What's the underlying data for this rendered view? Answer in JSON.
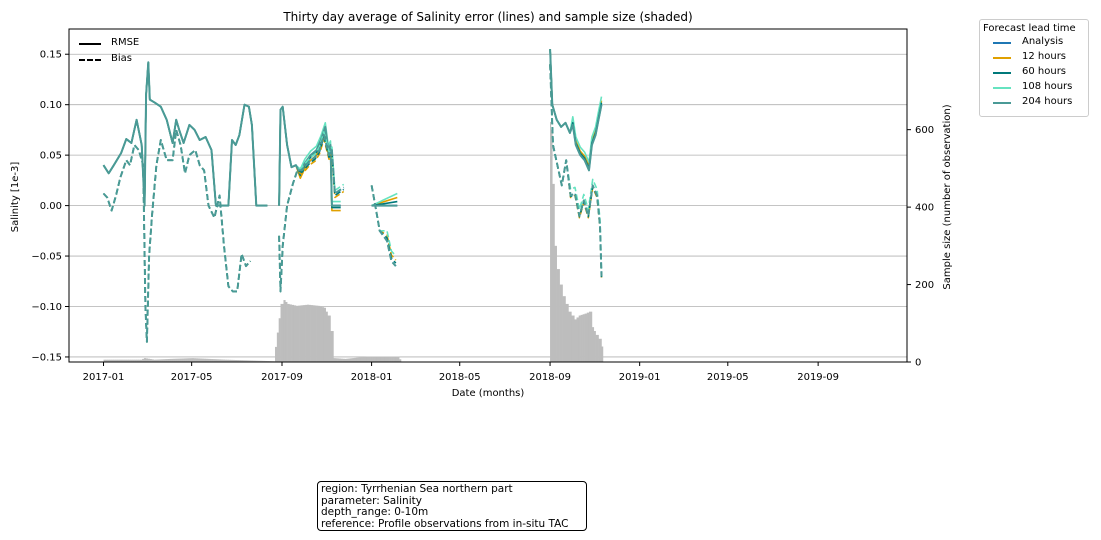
{
  "chart_data": {
    "type": "line",
    "title": "Thirty day average of Salinity error (lines) and sample size (shaded)",
    "xlabel": "Date (months)",
    "ylabel": "Salinity [1e-3]",
    "y2label": "Sample size (number of observation)",
    "ylim": [
      -0.155,
      0.175
    ],
    "y2lim": [
      0,
      860
    ],
    "xlim": [
      "2016-11-15",
      "2019-12-31"
    ],
    "xticks": [
      "2017-01",
      "2017-05",
      "2017-09",
      "2018-01",
      "2018-05",
      "2018-09",
      "2019-01",
      "2019-05",
      "2019-09"
    ],
    "yticks": [
      "0.15",
      "0.10",
      "0.05",
      "0.00",
      "−0.05",
      "−0.10",
      "−0.15"
    ],
    "y2ticks": [
      "0",
      "200",
      "400",
      "600"
    ],
    "grid": "horizontal",
    "legend_placement": "outside-right-top",
    "style_legend": [
      {
        "label": "RMSE",
        "style": "solid"
      },
      {
        "label": "Bias",
        "style": "dashed"
      }
    ],
    "legend_title": "Forecast lead time",
    "series": [
      {
        "name": "Analysis",
        "color": "#1f77b4"
      },
      {
        "name": "12 hours",
        "color": "#e0a000"
      },
      {
        "name": "60 hours",
        "color": "#00797a"
      },
      {
        "name": "108 hours",
        "color": "#66e3c0"
      },
      {
        "name": "204 hours",
        "color": "#4a9a96"
      }
    ],
    "rmse_segments": [
      [
        [
          "2017-01-01",
          0.04
        ],
        [
          "2017-01-08",
          0.032
        ],
        [
          "2017-01-15",
          0.04
        ],
        [
          "2017-01-25",
          0.052
        ],
        [
          "2017-02-01",
          0.066
        ],
        [
          "2017-02-08",
          0.062
        ],
        [
          "2017-02-15",
          0.085
        ],
        [
          "2017-02-22",
          0.06
        ],
        [
          "2017-02-26",
          0.0
        ],
        [
          "2017-02-28",
          0.11
        ],
        [
          "2017-03-03",
          0.142
        ],
        [
          "2017-03-05",
          0.105
        ],
        [
          "2017-03-12",
          0.102
        ],
        [
          "2017-03-20",
          0.098
        ],
        [
          "2017-03-28",
          0.085
        ],
        [
          "2017-04-05",
          0.062
        ],
        [
          "2017-04-10",
          0.085
        ],
        [
          "2017-04-14",
          0.075
        ],
        [
          "2017-04-20",
          0.062
        ],
        [
          "2017-04-28",
          0.08
        ],
        [
          "2017-05-05",
          0.075
        ],
        [
          "2017-05-12",
          0.065
        ],
        [
          "2017-05-20",
          0.068
        ],
        [
          "2017-05-28",
          0.055
        ],
        [
          "2017-06-03",
          0.0
        ],
        [
          "2017-06-20",
          0.0
        ],
        [
          "2017-06-25",
          0.065
        ],
        [
          "2017-06-30",
          0.06
        ],
        [
          "2017-07-05",
          0.07
        ],
        [
          "2017-07-12",
          0.1
        ],
        [
          "2017-07-18",
          0.098
        ],
        [
          "2017-07-22",
          0.08
        ],
        [
          "2017-07-28",
          0.0
        ],
        [
          "2017-08-12",
          0.0
        ]
      ],
      [
        [
          "2017-08-28",
          0.0
        ],
        [
          "2017-08-30",
          0.095
        ],
        [
          "2017-09-02",
          0.098
        ],
        [
          "2017-09-08",
          0.06
        ],
        [
          "2017-09-14",
          0.038
        ],
        [
          "2017-09-20",
          0.04
        ],
        [
          "2017-09-26",
          0.032
        ],
        [
          "2017-10-02",
          0.042
        ],
        [
          "2017-10-10",
          0.05
        ],
        [
          "2017-10-18",
          0.055
        ],
        [
          "2017-10-24",
          0.065
        ],
        [
          "2017-10-30",
          0.078
        ],
        [
          "2017-11-03",
          0.055
        ],
        [
          "2017-11-06",
          0.06
        ],
        [
          "2017-11-08",
          0.0
        ],
        [
          "2017-11-20",
          0.0
        ]
      ],
      [
        [
          "2018-01-01",
          0.0
        ],
        [
          "2018-02-05",
          0.0
        ]
      ],
      [
        [
          "2018-09-01",
          0.155
        ],
        [
          "2018-09-04",
          0.1
        ],
        [
          "2018-09-10",
          0.085
        ],
        [
          "2018-09-16",
          0.078
        ],
        [
          "2018-09-22",
          0.082
        ],
        [
          "2018-09-28",
          0.072
        ],
        [
          "2018-10-02",
          0.08
        ],
        [
          "2018-10-06",
          0.06
        ],
        [
          "2018-10-12",
          0.05
        ],
        [
          "2018-10-18",
          0.045
        ],
        [
          "2018-10-24",
          0.035
        ],
        [
          "2018-10-28",
          0.06
        ],
        [
          "2018-11-02",
          0.07
        ],
        [
          "2018-11-06",
          0.085
        ],
        [
          "2018-11-10",
          0.1
        ]
      ]
    ],
    "bias_segments": [
      [
        [
          "2017-01-01",
          0.012
        ],
        [
          "2017-01-06",
          0.008
        ],
        [
          "2017-01-12",
          -0.005
        ],
        [
          "2017-01-18",
          0.01
        ],
        [
          "2017-01-24",
          0.028
        ],
        [
          "2017-02-01",
          0.045
        ],
        [
          "2017-02-06",
          0.04
        ],
        [
          "2017-02-12",
          0.06
        ],
        [
          "2017-02-18",
          0.055
        ],
        [
          "2017-02-24",
          0.04
        ],
        [
          "2017-02-27",
          -0.1
        ],
        [
          "2017-03-01",
          -0.135
        ],
        [
          "2017-03-04",
          -0.05
        ],
        [
          "2017-03-08",
          -0.01
        ],
        [
          "2017-03-14",
          0.04
        ],
        [
          "2017-03-20",
          0.065
        ],
        [
          "2017-03-28",
          0.045
        ],
        [
          "2017-04-05",
          0.045
        ],
        [
          "2017-04-10",
          0.075
        ],
        [
          "2017-04-16",
          0.06
        ],
        [
          "2017-04-22",
          0.032
        ],
        [
          "2017-04-28",
          0.05
        ],
        [
          "2017-05-06",
          0.055
        ],
        [
          "2017-05-12",
          0.04
        ],
        [
          "2017-05-18",
          0.035
        ],
        [
          "2017-05-24",
          0.0
        ],
        [
          "2017-06-01",
          -0.012
        ],
        [
          "2017-06-08",
          0.01
        ],
        [
          "2017-06-14",
          -0.04
        ],
        [
          "2017-06-20",
          -0.08
        ],
        [
          "2017-06-26",
          -0.085
        ],
        [
          "2017-07-02",
          -0.085
        ],
        [
          "2017-07-08",
          -0.048
        ],
        [
          "2017-07-14",
          -0.06
        ],
        [
          "2017-07-20",
          -0.055
        ]
      ],
      [
        [
          "2017-08-28",
          -0.03
        ],
        [
          "2017-08-30",
          -0.085
        ],
        [
          "2017-09-02",
          -0.04
        ],
        [
          "2017-09-08",
          0.0
        ],
        [
          "2017-09-16",
          0.022
        ],
        [
          "2017-09-22",
          0.035
        ],
        [
          "2017-09-28",
          0.035
        ],
        [
          "2017-10-04",
          0.04
        ],
        [
          "2017-10-10",
          0.045
        ],
        [
          "2017-10-16",
          0.048
        ],
        [
          "2017-10-22",
          0.055
        ],
        [
          "2017-10-28",
          0.07
        ],
        [
          "2017-11-04",
          0.05
        ],
        [
          "2017-11-08",
          0.055
        ],
        [
          "2017-11-12",
          0.012
        ],
        [
          "2017-11-18",
          0.015
        ],
        [
          "2017-11-24",
          0.018
        ]
      ],
      [
        [
          "2018-01-01",
          0.02
        ],
        [
          "2018-01-06",
          0.0
        ],
        [
          "2018-01-12",
          -0.025
        ],
        [
          "2018-01-22",
          -0.035
        ],
        [
          "2018-01-28",
          -0.055
        ],
        [
          "2018-02-03",
          -0.06
        ]
      ],
      [
        [
          "2018-09-01",
          0.14
        ],
        [
          "2018-09-05",
          0.06
        ],
        [
          "2018-09-11",
          0.04
        ],
        [
          "2018-09-17",
          0.02
        ],
        [
          "2018-09-23",
          0.045
        ],
        [
          "2018-09-29",
          0.01
        ],
        [
          "2018-10-05",
          0.012
        ],
        [
          "2018-10-11",
          -0.01
        ],
        [
          "2018-10-17",
          0.005
        ],
        [
          "2018-10-23",
          -0.01
        ],
        [
          "2018-10-29",
          0.02
        ],
        [
          "2018-11-04",
          0.01
        ],
        [
          "2018-11-08",
          -0.02
        ],
        [
          "2018-11-10",
          -0.07
        ]
      ]
    ],
    "lead_offsets": {
      "rmse": [
        [
          0.0,
          0.0,
          0.0
        ],
        [
          -0.005,
          0.004,
          0.008
        ],
        [
          -0.002,
          0.002,
          0.004
        ],
        [
          0.004,
          0.008,
          0.012
        ],
        [
          0.0,
          0.0,
          0.0
        ]
      ],
      "bias": [
        [
          0.0,
          0.0,
          0.0
        ],
        [
          -0.004,
          -0.002,
          0.006
        ],
        [
          -0.002,
          -0.001,
          0.003
        ],
        [
          0.003,
          0.006,
          0.01
        ],
        [
          0.0,
          0.0,
          0.0
        ]
      ]
    },
    "sample_size": [
      [
        "2017-01-01",
        6
      ],
      [
        "2017-02-20",
        6
      ],
      [
        "2017-02-25",
        10
      ],
      [
        "2017-03-10",
        6
      ],
      [
        "2017-04-01",
        8
      ],
      [
        "2017-05-01",
        10
      ],
      [
        "2017-06-15",
        6
      ],
      [
        "2017-08-20",
        2
      ],
      [
        "2017-08-30",
        150
      ],
      [
        "2017-09-03",
        160
      ],
      [
        "2017-09-08",
        150
      ],
      [
        "2017-09-20",
        145
      ],
      [
        "2017-10-05",
        148
      ],
      [
        "2017-10-20",
        145
      ],
      [
        "2017-10-28",
        140
      ],
      [
        "2017-11-02",
        120
      ],
      [
        "2017-11-06",
        80
      ],
      [
        "2017-11-10",
        10
      ],
      [
        "2017-11-25",
        8
      ],
      [
        "2017-12-25",
        14
      ],
      [
        "2018-02-05",
        14
      ],
      [
        "2018-02-10",
        0
      ],
      [
        "2018-08-30",
        0
      ],
      [
        "2018-09-01",
        620
      ],
      [
        "2018-09-02",
        600
      ],
      [
        "2018-09-04",
        460
      ],
      [
        "2018-09-07",
        300
      ],
      [
        "2018-09-10",
        240
      ],
      [
        "2018-09-14",
        200
      ],
      [
        "2018-09-18",
        170
      ],
      [
        "2018-09-22",
        150
      ],
      [
        "2018-09-26",
        130
      ],
      [
        "2018-09-30",
        120
      ],
      [
        "2018-10-04",
        110
      ],
      [
        "2018-10-10",
        120
      ],
      [
        "2018-10-18",
        125
      ],
      [
        "2018-10-24",
        130
      ],
      [
        "2018-10-28",
        90
      ],
      [
        "2018-11-02",
        70
      ],
      [
        "2018-11-06",
        60
      ],
      [
        "2018-11-10",
        40
      ],
      [
        "2018-11-12",
        0
      ]
    ]
  },
  "info_box": {
    "lines": [
      "region: Tyrrhenian Sea northern part",
      "parameter: Salinity",
      "depth_range: 0-10m",
      "reference: Profile observations from in-situ TAC"
    ]
  }
}
